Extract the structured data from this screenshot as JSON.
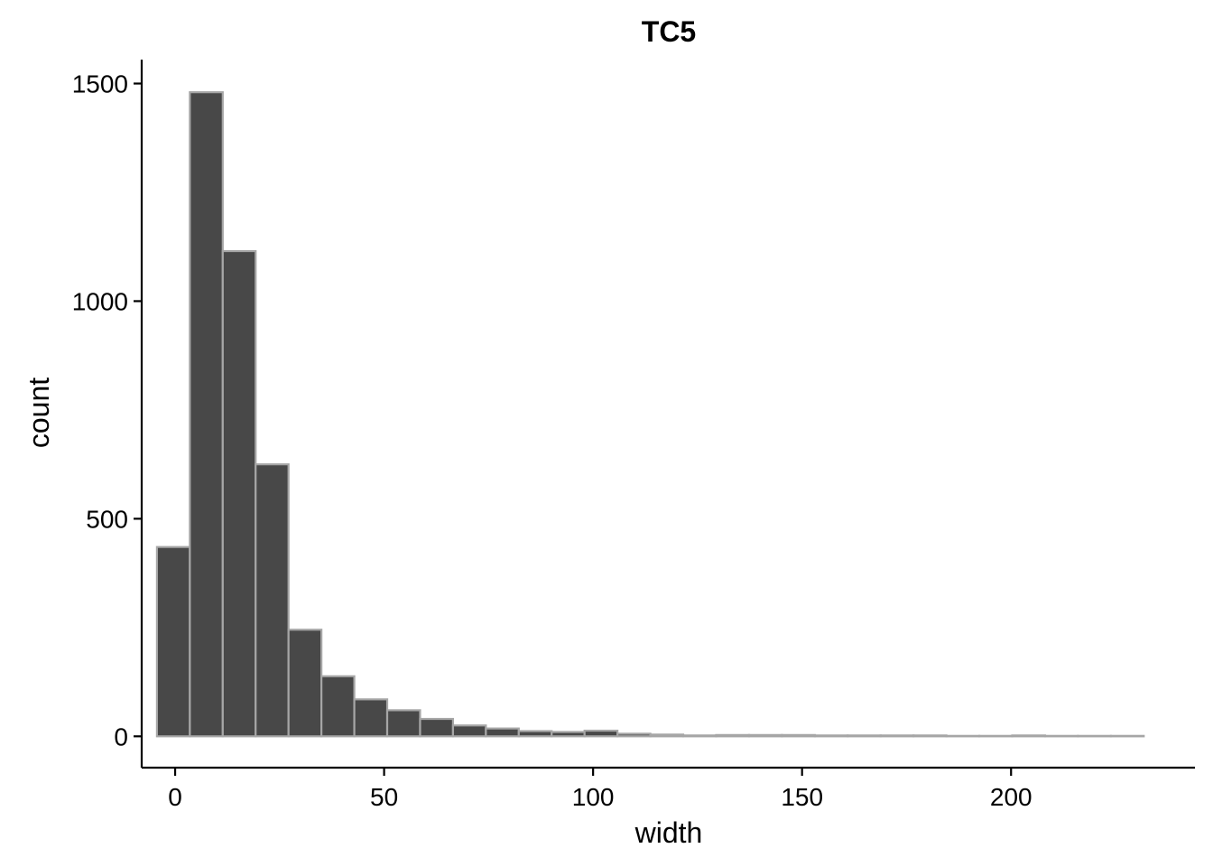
{
  "chart_data": {
    "type": "bar",
    "title": "TC5",
    "xlabel": "width",
    "ylabel": "count",
    "xlim": [
      -8,
      244
    ],
    "ylim": [
      -72,
      1555
    ],
    "x_ticks": [
      0,
      50,
      100,
      150,
      200
    ],
    "y_ticks": [
      0,
      500,
      1000,
      1500
    ],
    "bin_width": 7.87,
    "bin_starts": [
      -4.35,
      3.52,
      11.39,
      19.26,
      27.13,
      35.0,
      42.87,
      50.74,
      58.61,
      66.48,
      74.35,
      82.22,
      90.09,
      97.96,
      105.83,
      113.7,
      121.57,
      129.44,
      137.31,
      145.18,
      153.05,
      160.92,
      168.79,
      176.66,
      184.53,
      192.4,
      200.27,
      208.14,
      216.01,
      223.88
    ],
    "values": [
      435,
      1480,
      1115,
      625,
      245,
      138,
      85,
      60,
      40,
      25,
      18,
      12,
      10,
      13,
      6,
      4,
      2,
      3,
      3,
      3,
      2,
      2,
      2,
      2,
      1,
      1,
      2,
      1,
      1,
      1
    ],
    "grid": false,
    "legend": "none",
    "colors": {
      "fill": "#484848",
      "outline": "#a6a6a6"
    }
  }
}
